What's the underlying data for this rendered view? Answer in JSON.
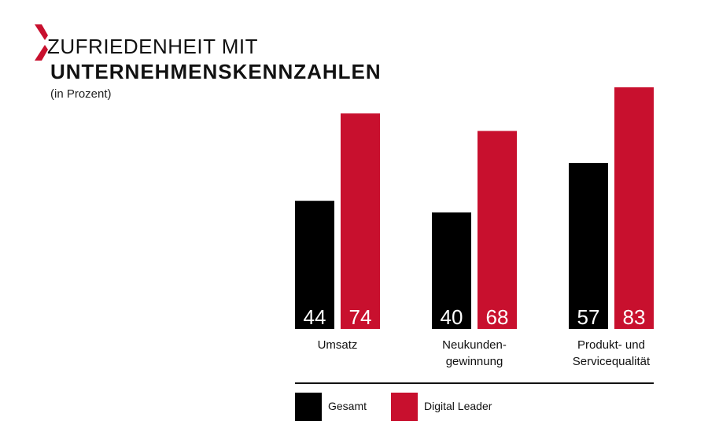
{
  "header": {
    "title_line1": "ZUFRIEDENHEIT MIT",
    "title_line2": "UNTERNEHMENSKENNZAHLEN",
    "subtitle": "(in Prozent)",
    "logo_icon": "x-logo-icon",
    "logo_color": "#c8102e"
  },
  "legend": {
    "items": [
      {
        "label": "Gesamt",
        "color": "#000000"
      },
      {
        "label": "Digital Leader",
        "color": "#c8102e"
      }
    ]
  },
  "chart_data": {
    "type": "bar",
    "title": "ZUFRIEDENHEIT MIT UNTERNEHMENSKENNZAHLEN",
    "subtitle": "(in Prozent)",
    "categories": [
      [
        "Umsatz"
      ],
      [
        "Neukunden-",
        "gewinnung"
      ],
      [
        "Produkt- und",
        "Servicequalität"
      ]
    ],
    "series": [
      {
        "name": "Gesamt",
        "values": [
          44,
          40,
          57
        ],
        "color": "#000000"
      },
      {
        "name": "Digital Leader",
        "values": [
          74,
          68,
          83
        ],
        "color": "#c8102e"
      }
    ],
    "ylim": [
      0,
      100
    ],
    "grid": false,
    "legend_position": "bottom",
    "data_labels": "inside-bottom"
  }
}
